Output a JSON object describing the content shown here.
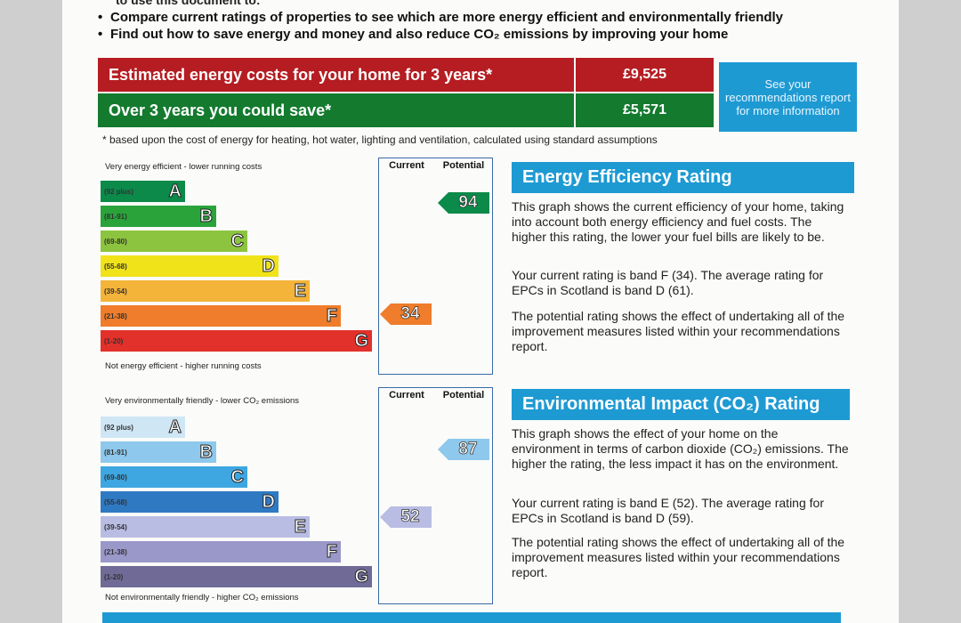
{
  "top_text": "to use this document to:",
  "bullets": [
    "Compare current ratings of properties to see which are more energy efficient and environmentally friendly",
    "Find out how to save energy and money and also reduce CO₂ emissions by improving your home"
  ],
  "costs": {
    "row1_label": "Estimated energy costs for your home for 3 years*",
    "row1_value": "£9,525",
    "row2_label": "Over 3 years you could save*",
    "row2_value": "£5,571",
    "see_report": "See your recommendations report for more information",
    "footnote": "* based upon the cost of energy for heating, hot water, lighting and ventilation, calculated using standard assumptions"
  },
  "energy_chart": {
    "top_caption": "Very energy efficient - lower running costs",
    "bottom_caption": "Not energy efficient - higher running costs",
    "col_current": "Current",
    "col_potential": "Potential",
    "current": "34",
    "potential": "94",
    "bands": [
      {
        "range": "(92 plus)",
        "letter": "A",
        "color": "#0b8a4a"
      },
      {
        "range": "(81-91)",
        "letter": "B",
        "color": "#2aa33b"
      },
      {
        "range": "(69-80)",
        "letter": "C",
        "color": "#8dc43f"
      },
      {
        "range": "(55-68)",
        "letter": "D",
        "color": "#f0e31a"
      },
      {
        "range": "(39-54)",
        "letter": "E",
        "color": "#f4b43a"
      },
      {
        "range": "(21-38)",
        "letter": "F",
        "color": "#ef7d2b"
      },
      {
        "range": "(1-20)",
        "letter": "G",
        "color": "#e2302a"
      }
    ]
  },
  "co2_chart": {
    "top_caption": "Very environmentally friendly - lower CO₂ emissions",
    "bottom_caption": "Not environmentally friendly - higher CO₂ emissions",
    "col_current": "Current",
    "col_potential": "Potential",
    "current": "52",
    "potential": "87",
    "bands": [
      {
        "range": "(92 plus)",
        "letter": "A",
        "color": "#cfe6f5"
      },
      {
        "range": "(81-91)",
        "letter": "B",
        "color": "#8ec8ec"
      },
      {
        "range": "(69-80)",
        "letter": "C",
        "color": "#3ea6e0"
      },
      {
        "range": "(55-68)",
        "letter": "D",
        "color": "#2f79c3"
      },
      {
        "range": "(39-54)",
        "letter": "E",
        "color": "#b9bde4"
      },
      {
        "range": "(21-38)",
        "letter": "F",
        "color": "#9a97c9"
      },
      {
        "range": "(1-20)",
        "letter": "G",
        "color": "#6f6a96"
      }
    ]
  },
  "energy_text": {
    "heading": "Energy Efficiency Rating",
    "p1": "This graph shows the current efficiency of your home, taking into account both energy efficiency and fuel costs. The higher this rating, the lower your fuel bills are likely to be.",
    "p2": "Your current rating is band F (34). The average rating for EPCs in Scotland is band D (61).",
    "p3": "The potential rating shows the effect of undertaking all of the improvement measures listed within your recommendations report."
  },
  "co2_text": {
    "heading": "Environmental Impact (CO₂) Rating",
    "p1": "This graph shows the effect of your home on the environment in terms of carbon dioxide (CO₂) emissions. The higher the rating, the less impact it has on the environment.",
    "p2": "Your current rating is band E (52). The average rating for EPCs in Scotland is band D (59).",
    "p3": "The potential rating shows the effect of undertaking all of the improvement measures listed within your recommendations report."
  }
}
